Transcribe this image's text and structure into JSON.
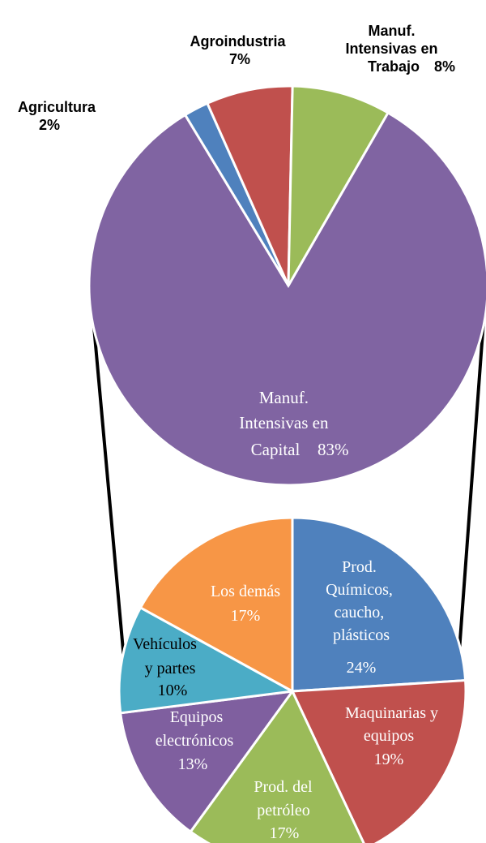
{
  "colors": {
    "purple": "#8064a2",
    "green": "#9bbb59",
    "red": "#c0504d",
    "blue": "#4f81bd",
    "orange": "#f79646",
    "teal": "#4bacc6",
    "darkpurple": "#7f5f9f"
  },
  "chart_data": [
    {
      "type": "pie",
      "slices": [
        {
          "label": "Manuf. Intensivas en Capital",
          "value": 83,
          "value_label": "83%",
          "color": "#8064a2"
        },
        {
          "label": "Agroindustria",
          "value": 7,
          "value_label": "7%",
          "color": "#c0504d"
        },
        {
          "label": "Manuf. Intensivas en Trabajo",
          "value": 8,
          "value_label": "8%",
          "color": "#9bbb59"
        },
        {
          "label": "Agricultura",
          "value": 2,
          "value_label": "2%",
          "color": "#4f81bd"
        }
      ]
    },
    {
      "type": "pie",
      "slices": [
        {
          "label": "Prod. Químicos, caucho, plásticos",
          "value": 24,
          "value_label": "24%",
          "color": "#4f81bd"
        },
        {
          "label": "Maquinarias y equipos",
          "value": 19,
          "value_label": "19%",
          "color": "#c0504d"
        },
        {
          "label": "Prod. del petróleo",
          "value": 17,
          "value_label": "17%",
          "color": "#9bbb59"
        },
        {
          "label": "Equipos electrónicos",
          "value": 13,
          "value_label": "13%",
          "color": "#7f5f9f"
        },
        {
          "label": "Vehículos y partes",
          "value": 10,
          "value_label": "10%",
          "color": "#4bacc6"
        },
        {
          "label": "Los demás",
          "value": 17,
          "value_label": "17%",
          "color": "#f79646"
        }
      ]
    }
  ]
}
